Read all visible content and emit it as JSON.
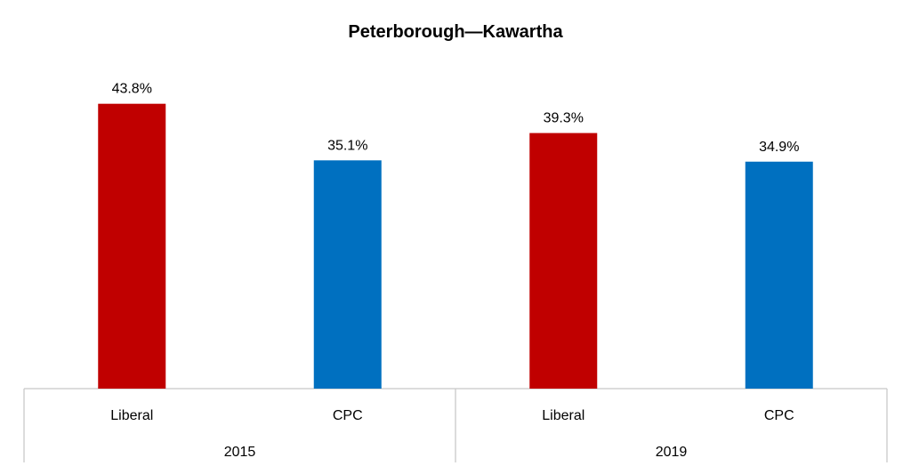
{
  "chart_data": {
    "type": "bar",
    "title": "Peterborough—Kawartha",
    "groups": [
      {
        "label": "2015",
        "bars": [
          {
            "category": "Liberal",
            "value": 43.8,
            "label": "43.8%"
          },
          {
            "category": "CPC",
            "value": 35.1,
            "label": "35.1%"
          }
        ]
      },
      {
        "label": "2019",
        "bars": [
          {
            "category": "Liberal",
            "value": 39.3,
            "label": "39.3%"
          },
          {
            "category": "CPC",
            "value": 34.9,
            "label": "34.9%"
          }
        ]
      }
    ],
    "ylim": [
      0,
      49.5
    ],
    "colors": {
      "Liberal": "#C00000",
      "CPC": "#0070C0"
    },
    "grid": false,
    "legend": false
  }
}
